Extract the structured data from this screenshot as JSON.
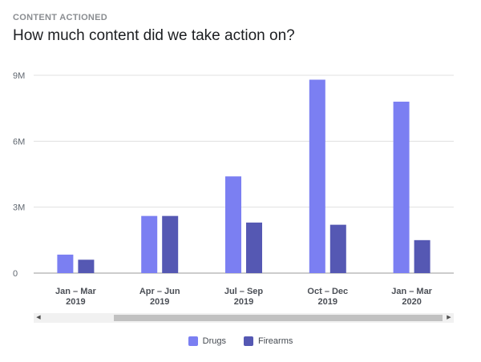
{
  "header": {
    "eyebrow": "CONTENT ACTIONED",
    "title": "How much content did we take action on?"
  },
  "chart_data": {
    "type": "bar",
    "title": "How much content did we take action on?",
    "categories": [
      [
        "Jan – Mar",
        "2019"
      ],
      [
        "Apr – Jun",
        "2019"
      ],
      [
        "Jul – Sep",
        "2019"
      ],
      [
        "Oct – Dec",
        "2019"
      ],
      [
        "Jan – Mar",
        "2020"
      ]
    ],
    "series": [
      {
        "name": "Drugs",
        "color": "#7b7ff2",
        "values": [
          841000,
          2600000,
          4400000,
          8800000,
          7800000
        ]
      },
      {
        "name": "Firearms",
        "color": "#5558b3",
        "values": [
          609000,
          2600000,
          2300000,
          2200000,
          1500000
        ]
      }
    ],
    "ylim": [
      0,
      9000000
    ],
    "yticks": [
      0,
      3000000,
      6000000,
      9000000
    ],
    "ytick_labels": [
      "0",
      "3M",
      "6M",
      "9M"
    ],
    "grid": true,
    "legend_position": "bottom-center"
  },
  "scrollbar": {
    "left_arrow": "◀",
    "right_arrow": "▶"
  }
}
